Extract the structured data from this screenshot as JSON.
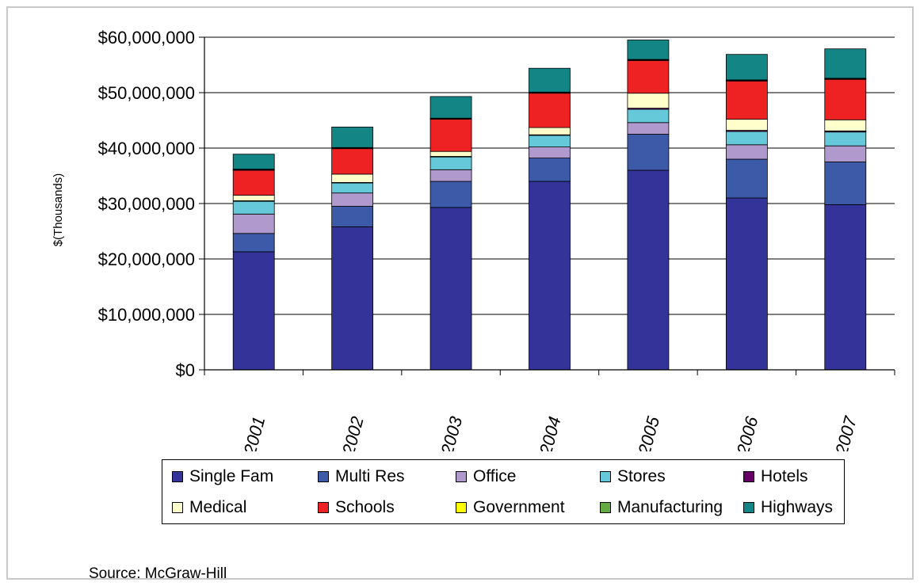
{
  "chart_data": {
    "type": "bar",
    "stacked": true,
    "title": "",
    "xlabel": "",
    "ylabel": "$(Thousands)",
    "ylim": [
      0,
      60000000
    ],
    "yticks": [
      0,
      10000000,
      20000000,
      30000000,
      40000000,
      50000000,
      60000000
    ],
    "ytick_labels": [
      "$0",
      "$10,000,000",
      "$20,000,000",
      "$30,000,000",
      "$40,000,000",
      "$50,000,000",
      "$60,000,000"
    ],
    "grid": "horizontal",
    "legend_position": "bottom",
    "categories": [
      "2001",
      "2002",
      "2003",
      "2004",
      "2005",
      "2006",
      "2007"
    ],
    "series": [
      {
        "name": "Single Fam",
        "color": "#333399",
        "values": [
          21300000,
          25800000,
          29300000,
          34000000,
          36000000,
          31000000,
          29800000
        ]
      },
      {
        "name": "Multi Res",
        "color": "#3d5aa8",
        "values": [
          3300000,
          3700000,
          4700000,
          4200000,
          6500000,
          7000000,
          7700000
        ]
      },
      {
        "name": "Office",
        "color": "#b09acd",
        "values": [
          3500000,
          2400000,
          2100000,
          2000000,
          2100000,
          2600000,
          2900000
        ]
      },
      {
        "name": "Stores",
        "color": "#66c9d9",
        "values": [
          2300000,
          1800000,
          2300000,
          2100000,
          2400000,
          2400000,
          2500000
        ]
      },
      {
        "name": "Hotels",
        "color": "#660066",
        "values": [
          100000,
          100000,
          100000,
          100000,
          200000,
          200000,
          200000
        ]
      },
      {
        "name": "Medical",
        "color": "#ffffcc",
        "values": [
          1000000,
          1500000,
          900000,
          1300000,
          2700000,
          2000000,
          2000000
        ]
      },
      {
        "name": "Schools",
        "color": "#ee2222",
        "values": [
          4500000,
          4600000,
          5800000,
          6200000,
          5900000,
          6900000,
          7300000
        ]
      },
      {
        "name": "Government",
        "color": "#ffff00",
        "values": [
          100000,
          100000,
          100000,
          100000,
          100000,
          100000,
          100000
        ]
      },
      {
        "name": "Manufacturing",
        "color": "#66aa44",
        "values": [
          100000,
          100000,
          100000,
          100000,
          100000,
          100000,
          100000
        ]
      },
      {
        "name": "Highways",
        "color": "#148585",
        "values": [
          2700000,
          3700000,
          3900000,
          4300000,
          3500000,
          4600000,
          5300000
        ]
      }
    ],
    "white_gaps": {
      "note_series": []
    }
  },
  "source": "Source: McGraw-Hill"
}
